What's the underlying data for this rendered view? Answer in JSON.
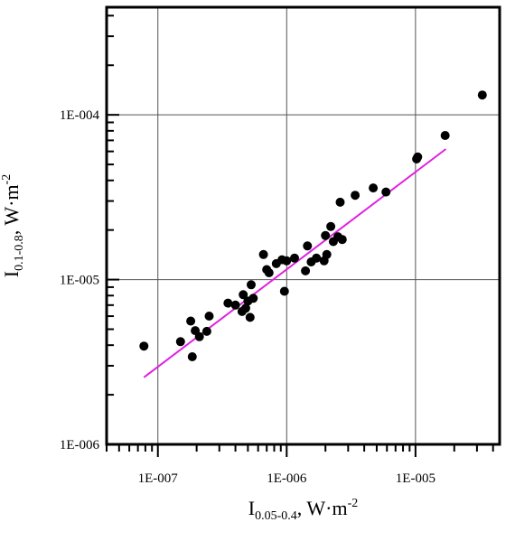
{
  "chart_data": {
    "type": "scatter",
    "x_scale": "log",
    "y_scale": "log",
    "xlim": [
      4e-08,
      4.5e-05
    ],
    "ylim": [
      1e-06,
      0.00045
    ],
    "grid": true,
    "x_ticks": [
      {
        "value": 1e-07,
        "label": "1E-007"
      },
      {
        "value": 1e-06,
        "label": "1E-006"
      },
      {
        "value": 1e-05,
        "label": "1E-005"
      }
    ],
    "y_ticks": [
      {
        "value": 1e-06,
        "label": "1E-006"
      },
      {
        "value": 1e-05,
        "label": "1E-005"
      },
      {
        "value": 0.0001,
        "label": "1E-004"
      }
    ],
    "xlabel": {
      "main": "I",
      "sub": "0.05-0.4",
      "rest": ", W·m",
      "sup": "-2"
    },
    "ylabel": {
      "main": "I",
      "sub": "0.1-0.8",
      "rest": ", W·m",
      "sup": "-2"
    },
    "series": [
      {
        "color": "#000000",
        "marker": "circle",
        "points": [
          [
            7.8e-08,
            3.95e-06
          ],
          [
            1.5e-07,
            4.2e-06
          ],
          [
            1.8e-07,
            5.6e-06
          ],
          [
            1.85e-07,
            3.4e-06
          ],
          [
            1.95e-07,
            4.9e-06
          ],
          [
            2.1e-07,
            4.5e-06
          ],
          [
            2.4e-07,
            4.85e-06
          ],
          [
            2.5e-07,
            6e-06
          ],
          [
            3.5e-07,
            7.2e-06
          ],
          [
            4e-07,
            7e-06
          ],
          [
            4.5e-07,
            6.4e-06
          ],
          [
            4.6e-07,
            8.1e-06
          ],
          [
            4.8e-07,
            6.7e-06
          ],
          [
            5e-07,
            7.4e-06
          ],
          [
            5.2e-07,
            5.9e-06
          ],
          [
            5.3e-07,
            9.3e-06
          ],
          [
            5.5e-07,
            7.7e-06
          ],
          [
            6.6e-07,
            1.42e-05
          ],
          [
            7e-07,
            1.15e-05
          ],
          [
            7.3e-07,
            1.1e-05
          ],
          [
            8.3e-07,
            1.25e-05
          ],
          [
            9.2e-07,
            1.32e-05
          ],
          [
            9.6e-07,
            8.5e-06
          ],
          [
            1e-06,
            1.3e-05
          ],
          [
            1.15e-06,
            1.35e-05
          ],
          [
            1.4e-06,
            1.13e-05
          ],
          [
            1.45e-06,
            1.6e-05
          ],
          [
            1.55e-06,
            1.28e-05
          ],
          [
            1.7e-06,
            1.35e-05
          ],
          [
            1.95e-06,
            1.3e-05
          ],
          [
            2e-06,
            1.85e-05
          ],
          [
            2.05e-06,
            1.42e-05
          ],
          [
            2.2e-06,
            2.1e-05
          ],
          [
            2.3e-06,
            1.7e-05
          ],
          [
            2.5e-06,
            1.82e-05
          ],
          [
            2.6e-06,
            2.95e-05
          ],
          [
            2.7e-06,
            1.75e-05
          ],
          [
            3.4e-06,
            3.25e-05
          ],
          [
            4.7e-06,
            3.6e-05
          ],
          [
            5.9e-06,
            3.4e-05
          ],
          [
            1.02e-05,
            5.4e-05
          ],
          [
            1.04e-05,
            5.55e-05
          ],
          [
            1.7e-05,
            7.5e-05
          ],
          [
            3.3e-05,
            0.000132
          ]
        ]
      },
      {
        "type": "line",
        "color": "#e020e0",
        "points": [
          [
            7.8e-08,
            2.55e-06
          ],
          [
            1.72e-05,
            6.2e-05
          ]
        ]
      }
    ]
  }
}
